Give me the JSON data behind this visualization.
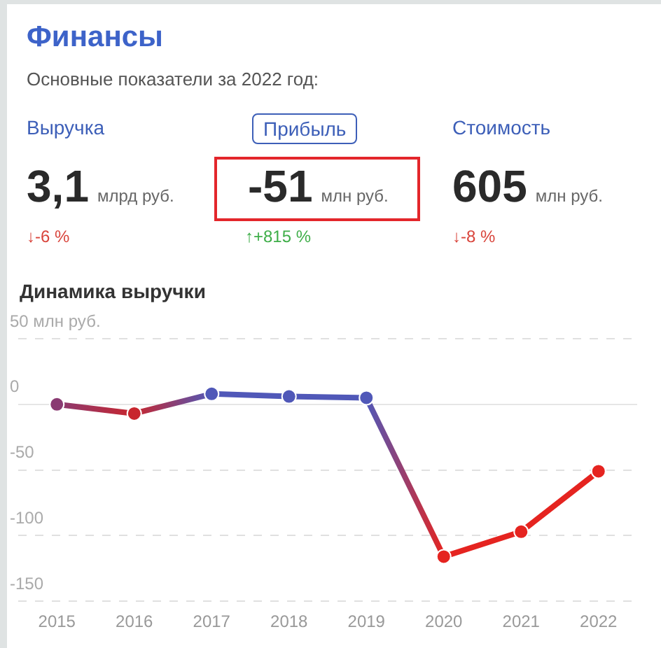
{
  "chart_data": [
    {
      "type": "other",
      "title": "Финансы",
      "subtitle": "Основные показатели за 2022 год:",
      "annotations": [
        "Выручка",
        "3,1",
        "млрд руб.",
        "↓-6 %",
        "Прибыль",
        "-51",
        "млн руб.",
        "↑+815 %",
        "Стоимость",
        "605",
        "млн руб.",
        "↓-8 %"
      ]
    },
    {
      "type": "line",
      "title": "Динамика выручки",
      "categories": [
        "2015",
        "2016",
        "2017",
        "2018",
        "2019",
        "2020",
        "2021",
        "2022"
      ],
      "series": [
        {
          "colors": [
            "#8a3a72",
            "#c8262e",
            "#5058b8",
            "#5058b8",
            "#5058b8",
            "#e52420",
            "#e52420",
            "#e52420"
          ],
          "values": [
            0,
            -7,
            8,
            6,
            5,
            -116,
            -97,
            -51
          ]
        }
      ],
      "ylim": [
        -150,
        50
      ],
      "yticks": [
        {
          "value": 50,
          "label": "50 млн руб."
        },
        0,
        -50,
        -100,
        -150
      ],
      "grid": "y",
      "legend": false,
      "marker": "circle",
      "line_style": "solid"
    }
  ]
}
